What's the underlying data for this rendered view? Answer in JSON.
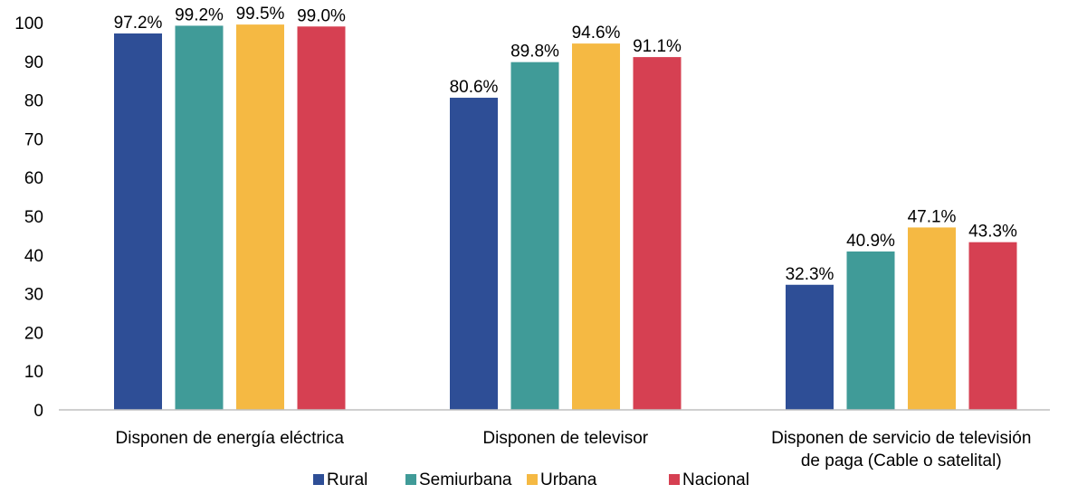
{
  "chart_data": {
    "type": "bar",
    "categories": [
      [
        "Disponen de energía eléctrica"
      ],
      [
        "Disponen de televisor"
      ],
      [
        "Disponen de servicio de televisión",
        "de paga (Cable o satelital)"
      ]
    ],
    "series": [
      {
        "name": "Rural",
        "color": "#2E4E96",
        "values": [
          97.2,
          80.6,
          32.3
        ]
      },
      {
        "name": "Semiurbana",
        "color": "#409B98",
        "values": [
          99.2,
          89.8,
          40.9
        ]
      },
      {
        "name": "Urbana",
        "color": "#F5B943",
        "values": [
          99.5,
          94.6,
          47.1
        ]
      },
      {
        "name": "Nacional",
        "color": "#D64052",
        "values": [
          99.0,
          91.1,
          43.3
        ]
      }
    ],
    "data_labels": [
      [
        "97.2%",
        "80.6%",
        "32.3%"
      ],
      [
        "99.2%",
        "89.8%",
        "40.9%"
      ],
      [
        "99.5%",
        "94.6%",
        "47.1%"
      ],
      [
        "99.0%",
        "91.1%",
        "43.3%"
      ]
    ],
    "yticks": [
      "0",
      "10",
      "20",
      "30",
      "40",
      "50",
      "60",
      "70",
      "80",
      "90",
      "100"
    ],
    "ylim": [
      0,
      100
    ],
    "grid": false,
    "legend": "bottom",
    "title": "",
    "xlabel": "",
    "ylabel": ""
  }
}
